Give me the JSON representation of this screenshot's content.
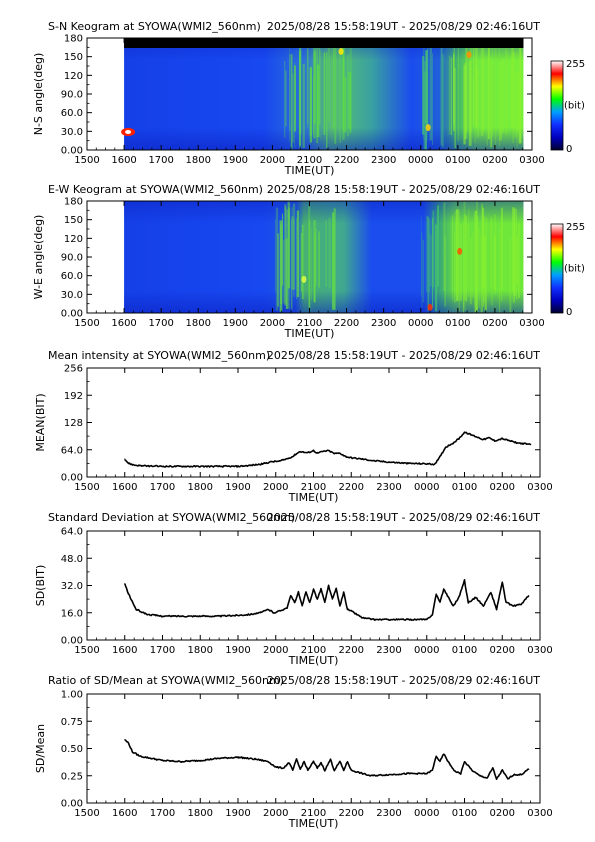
{
  "time_tick_labels": [
    "1500",
    "1600",
    "1700",
    "1800",
    "1900",
    "2000",
    "2100",
    "2200",
    "2300",
    "0000",
    "0100",
    "0200",
    "0300"
  ],
  "xlabel": "TIME(UT)",
  "colorbar": {
    "max_label": "255",
    "mid_label": "(bit)",
    "min_label": "0"
  },
  "chart_data": [
    {
      "type": "heatmap",
      "title": "S-N Keogram at SYOWA(WMI2_560nm)",
      "time_range": "2025/08/28 15:58:19UT - 2025/08/29 02:46:16UT",
      "ylabel": "N-S angle(deg)",
      "yticks": [
        "0.00",
        "30.0",
        "60.0",
        "90.0",
        "120",
        "150",
        "180"
      ],
      "ylim": [
        0,
        180
      ],
      "xlabel": "TIME(UT)",
      "colormap": [
        "#000030",
        "#0000c0",
        "#1030ff",
        "#00a0ff",
        "#00ff00",
        "#ffff00",
        "#ff0000",
        "#ffffff"
      ],
      "value_range_bit": [
        0,
        255
      ]
    },
    {
      "type": "heatmap",
      "title": "E-W Keogram at SYOWA(WMI2_560nm)",
      "time_range": "2025/08/28 15:58:19UT - 2025/08/29 02:46:16UT",
      "ylabel": "W-E angle(deg)",
      "yticks": [
        "0.00",
        "30.0",
        "60.0",
        "90.0",
        "120",
        "150",
        "180"
      ],
      "ylim": [
        0,
        180
      ],
      "xlabel": "TIME(UT)",
      "colormap": [
        "#000030",
        "#0000c0",
        "#1030ff",
        "#00a0ff",
        "#00ff00",
        "#ffff00",
        "#ff0000",
        "#ffffff"
      ],
      "value_range_bit": [
        0,
        255
      ]
    },
    {
      "type": "line",
      "title": "Mean intensity at SYOWA(WMI2_560nm)",
      "time_range": "2025/08/28 15:58:19UT - 2025/08/29 02:46:16UT",
      "ylabel": "MEAN(BIT)",
      "yticks": [
        "0.00",
        "64.0",
        "128",
        "192",
        "256"
      ],
      "ylim": [
        0,
        256
      ],
      "xlabel": "TIME(UT)",
      "x_unit": "hours UT (continues past 24 into next day)",
      "series": [
        {
          "values": [
            [
              16.0,
              42
            ],
            [
              16.1,
              32
            ],
            [
              16.25,
              28
            ],
            [
              16.5,
              26
            ],
            [
              17.0,
              25
            ],
            [
              17.5,
              25
            ],
            [
              18.0,
              25
            ],
            [
              18.5,
              25
            ],
            [
              19.0,
              25
            ],
            [
              19.3,
              27
            ],
            [
              19.6,
              30
            ],
            [
              19.9,
              36
            ],
            [
              20.1,
              37
            ],
            [
              20.3,
              43
            ],
            [
              20.45,
              48
            ],
            [
              20.55,
              55
            ],
            [
              20.65,
              60
            ],
            [
              20.75,
              58
            ],
            [
              20.85,
              57
            ],
            [
              21.0,
              62
            ],
            [
              21.1,
              56
            ],
            [
              21.25,
              60
            ],
            [
              21.4,
              62
            ],
            [
              21.55,
              55
            ],
            [
              21.7,
              56
            ],
            [
              21.85,
              48
            ],
            [
              22.0,
              45
            ],
            [
              22.3,
              42
            ],
            [
              22.6,
              38
            ],
            [
              23.0,
              35
            ],
            [
              23.5,
              32
            ],
            [
              24.0,
              31
            ],
            [
              24.2,
              30
            ],
            [
              24.3,
              40
            ],
            [
              24.4,
              55
            ],
            [
              24.5,
              70
            ],
            [
              24.6,
              75
            ],
            [
              24.7,
              80
            ],
            [
              24.85,
              90
            ],
            [
              25.0,
              105
            ],
            [
              25.15,
              100
            ],
            [
              25.3,
              95
            ],
            [
              25.5,
              88
            ],
            [
              25.65,
              92
            ],
            [
              25.8,
              85
            ],
            [
              26.0,
              90
            ],
            [
              26.2,
              85
            ],
            [
              26.4,
              80
            ],
            [
              26.6,
              78
            ],
            [
              26.75,
              76
            ]
          ]
        }
      ]
    },
    {
      "type": "line",
      "title": "Standard Deviation at SYOWA(WMI2_560nm)",
      "time_range": "2025/08/28 15:58:19UT - 2025/08/29 02:46:16UT",
      "ylabel": "SD(BIT)",
      "yticks": [
        "0.00",
        "16.0",
        "32.0",
        "48.0",
        "64.0"
      ],
      "ylim": [
        0,
        64
      ],
      "xlabel": "TIME(UT)",
      "x_unit": "hours UT (continues past 24 into next day)",
      "series": [
        {
          "values": [
            [
              16.0,
              33
            ],
            [
              16.1,
              27
            ],
            [
              16.3,
              18
            ],
            [
              16.6,
              15
            ],
            [
              17.0,
              14
            ],
            [
              17.5,
              14
            ],
            [
              18.0,
              14
            ],
            [
              18.5,
              14
            ],
            [
              19.0,
              14.5
            ],
            [
              19.3,
              15
            ],
            [
              19.6,
              16
            ],
            [
              19.8,
              18
            ],
            [
              19.95,
              16
            ],
            [
              20.1,
              17
            ],
            [
              20.3,
              19
            ],
            [
              20.4,
              26
            ],
            [
              20.5,
              22
            ],
            [
              20.6,
              28
            ],
            [
              20.7,
              20
            ],
            [
              20.8,
              28
            ],
            [
              20.9,
              22
            ],
            [
              21.0,
              30
            ],
            [
              21.1,
              24
            ],
            [
              21.2,
              30
            ],
            [
              21.3,
              22
            ],
            [
              21.4,
              32
            ],
            [
              21.5,
              24
            ],
            [
              21.6,
              30
            ],
            [
              21.7,
              20
            ],
            [
              21.8,
              28
            ],
            [
              21.9,
              18
            ],
            [
              22.0,
              17
            ],
            [
              22.3,
              13
            ],
            [
              22.6,
              12
            ],
            [
              23.0,
              12
            ],
            [
              23.5,
              12
            ],
            [
              24.0,
              12
            ],
            [
              24.15,
              15
            ],
            [
              24.25,
              27
            ],
            [
              24.35,
              22
            ],
            [
              24.45,
              30
            ],
            [
              24.55,
              26
            ],
            [
              24.7,
              20
            ],
            [
              24.85,
              25
            ],
            [
              25.0,
              35
            ],
            [
              25.1,
              22
            ],
            [
              25.3,
              25
            ],
            [
              25.5,
              20
            ],
            [
              25.7,
              28
            ],
            [
              25.85,
              18
            ],
            [
              26.0,
              34
            ],
            [
              26.1,
              22
            ],
            [
              26.3,
              20
            ],
            [
              26.5,
              21
            ],
            [
              26.7,
              26
            ]
          ]
        }
      ]
    },
    {
      "type": "line",
      "title": "Ratio of SD/Mean at SYOWA(WMI2_560nm)",
      "time_range": "2025/08/28 15:58:19UT - 2025/08/29 02:46:16UT",
      "ylabel": "SD/Mean",
      "yticks": [
        "0.00",
        "0.25",
        "0.50",
        "0.75",
        "1.00"
      ],
      "ylim": [
        0,
        1
      ],
      "xlabel": "TIME(UT)",
      "x_unit": "hours UT (continues past 24 into next day)",
      "series": [
        {
          "values": [
            [
              16.0,
              0.58
            ],
            [
              16.1,
              0.55
            ],
            [
              16.2,
              0.47
            ],
            [
              16.4,
              0.43
            ],
            [
              16.7,
              0.41
            ],
            [
              17.0,
              0.39
            ],
            [
              17.5,
              0.38
            ],
            [
              18.0,
              0.39
            ],
            [
              18.5,
              0.41
            ],
            [
              19.0,
              0.42
            ],
            [
              19.5,
              0.4
            ],
            [
              19.8,
              0.38
            ],
            [
              20.0,
              0.33
            ],
            [
              20.2,
              0.32
            ],
            [
              20.35,
              0.37
            ],
            [
              20.45,
              0.3
            ],
            [
              20.55,
              0.4
            ],
            [
              20.65,
              0.31
            ],
            [
              20.75,
              0.38
            ],
            [
              20.85,
              0.3
            ],
            [
              21.0,
              0.38
            ],
            [
              21.1,
              0.32
            ],
            [
              21.2,
              0.37
            ],
            [
              21.3,
              0.3
            ],
            [
              21.45,
              0.4
            ],
            [
              21.55,
              0.3
            ],
            [
              21.7,
              0.38
            ],
            [
              21.8,
              0.3
            ],
            [
              21.9,
              0.38
            ],
            [
              22.0,
              0.3
            ],
            [
              22.2,
              0.28
            ],
            [
              22.5,
              0.25
            ],
            [
              23.0,
              0.26
            ],
            [
              23.5,
              0.27
            ],
            [
              24.0,
              0.27
            ],
            [
              24.15,
              0.3
            ],
            [
              24.25,
              0.43
            ],
            [
              24.35,
              0.38
            ],
            [
              24.45,
              0.45
            ],
            [
              24.6,
              0.36
            ],
            [
              24.75,
              0.29
            ],
            [
              24.9,
              0.27
            ],
            [
              25.0,
              0.38
            ],
            [
              25.2,
              0.3
            ],
            [
              25.4,
              0.25
            ],
            [
              25.6,
              0.23
            ],
            [
              25.75,
              0.32
            ],
            [
              25.85,
              0.22
            ],
            [
              26.0,
              0.3
            ],
            [
              26.15,
              0.22
            ],
            [
              26.3,
              0.26
            ],
            [
              26.5,
              0.26
            ],
            [
              26.7,
              0.31
            ]
          ]
        }
      ]
    }
  ]
}
